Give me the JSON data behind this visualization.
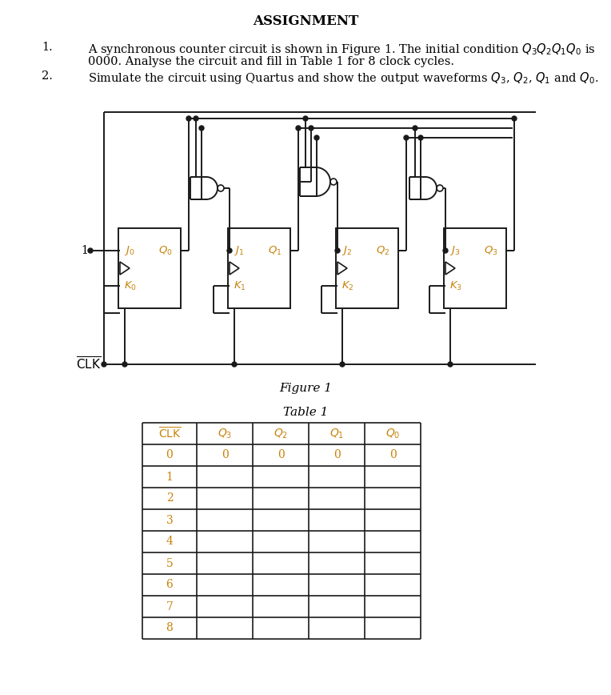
{
  "title": "ASSIGNMENT",
  "title_fontsize": 12,
  "body_fontsize": 10.5,
  "orange_color": "#c8820a",
  "line_color": "#1a1a1a",
  "bg_color": "#ffffff",
  "fig_caption": "Figure 1",
  "tbl_caption": "Table 1",
  "item1_line1": "A synchronous counter circuit is shown in Figure 1. The initial condition Q3Q2Q1Q0 is",
  "item1_line2": "0000. Analyse the circuit and fill in Table 1 for 8 clock cycles.",
  "item2_line": "Simulate the circuit using Quartus and show the output waveforms Q3, Q2, Q1 and Q0.",
  "table_clk_values": [
    "0",
    "1",
    "2",
    "3",
    "4",
    "5",
    "6",
    "7",
    "8"
  ],
  "table_q_row0": [
    "0",
    "0",
    "0",
    "0"
  ]
}
